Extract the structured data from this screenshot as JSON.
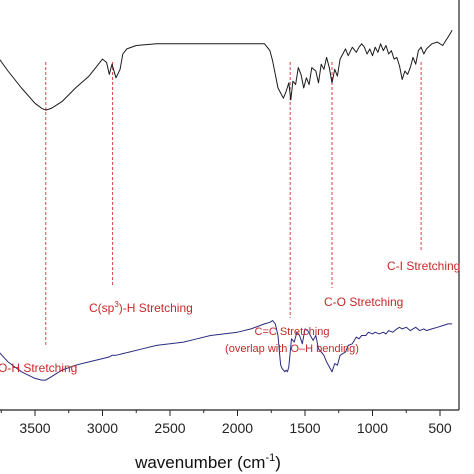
{
  "chart_data": {
    "type": "line",
    "title": "",
    "xlabel": "wavenumber (cm⁻¹)",
    "ylabel": "",
    "x_reversed": true,
    "xlim": [
      4000,
      400
    ],
    "ylim": [
      0,
      100
    ],
    "grid": false,
    "x_ticks": [
      3500,
      3000,
      2500,
      2000,
      1500,
      1000,
      500
    ],
    "colors": {
      "top": "#1a1a1a",
      "bottom": "#2b2b80",
      "markers": "#d32f2f",
      "text": "#c62828"
    },
    "series": [
      {
        "key": "top",
        "color": "#1a1a1a",
        "x": [
          4000,
          3900,
          3800,
          3700,
          3600,
          3500,
          3450,
          3420,
          3380,
          3300,
          3200,
          3100,
          3050,
          3000,
          2970,
          2950,
          2930,
          2900,
          2870,
          2850,
          2820,
          2750,
          2600,
          2400,
          2200,
          2000,
          1900,
          1800,
          1760,
          1740,
          1720,
          1700,
          1680,
          1660,
          1640,
          1620,
          1605,
          1590,
          1570,
          1550,
          1530,
          1510,
          1490,
          1470,
          1450,
          1420,
          1400,
          1380,
          1360,
          1340,
          1320,
          1300,
          1280,
          1260,
          1240,
          1220,
          1200,
          1180,
          1150,
          1120,
          1100,
          1080,
          1060,
          1040,
          1020,
          1000,
          980,
          960,
          940,
          920,
          900,
          880,
          860,
          840,
          820,
          800,
          780,
          760,
          740,
          720,
          700,
          680,
          660,
          640,
          620,
          600,
          560,
          520,
          480,
          440,
          410
        ],
        "y": [
          97,
          90,
          81,
          70,
          60,
          51,
          48,
          47,
          48,
          52,
          60,
          67,
          72,
          77,
          75,
          68,
          74,
          66,
          71,
          80,
          83,
          85,
          86,
          86,
          86,
          86,
          86,
          86,
          82,
          76,
          68,
          60,
          57,
          54,
          58,
          63,
          53,
          64,
          62,
          72,
          68,
          60,
          66,
          62,
          72,
          70,
          63,
          74,
          71,
          78,
          72,
          63,
          71,
          67,
          77,
          80,
          83,
          79,
          84,
          81,
          84,
          86,
          84,
          80,
          83,
          79,
          84,
          81,
          86,
          82,
          85,
          80,
          82,
          77,
          78,
          73,
          65,
          70,
          68,
          72,
          78,
          74,
          82,
          84,
          80,
          83,
          86,
          87,
          85,
          90,
          94
        ]
      },
      {
        "key": "bottom",
        "color": "#2b2b80",
        "x": [
          4000,
          3900,
          3800,
          3700,
          3600,
          3500,
          3450,
          3420,
          3380,
          3300,
          3200,
          3100,
          3000,
          2950,
          2930,
          2900,
          2850,
          2800,
          2700,
          2600,
          2500,
          2400,
          2300,
          2200,
          2100,
          2000,
          1900,
          1800,
          1760,
          1740,
          1720,
          1700,
          1690,
          1680,
          1670,
          1660,
          1650,
          1640,
          1630,
          1620,
          1600,
          1580,
          1560,
          1540,
          1520,
          1500,
          1480,
          1460,
          1440,
          1420,
          1400,
          1380,
          1360,
          1340,
          1320,
          1300,
          1280,
          1260,
          1240,
          1220,
          1200,
          1180,
          1150,
          1120,
          1100,
          1080,
          1050,
          1030,
          1000,
          980,
          950,
          920,
          900,
          880,
          850,
          820,
          800,
          780,
          750,
          720,
          700,
          680,
          650,
          620,
          600,
          560,
          520,
          480,
          440,
          410
        ],
        "y": [
          46,
          33,
          23,
          14,
          8,
          4,
          3,
          3,
          5,
          9,
          12,
          14,
          16,
          17,
          18,
          18,
          19,
          20,
          22,
          24,
          25,
          26,
          28,
          30,
          31,
          32,
          34,
          37,
          38,
          39,
          37,
          30,
          20,
          12,
          10,
          9,
          8,
          9,
          8,
          11,
          28,
          26,
          32,
          30,
          25,
          34,
          33,
          30,
          27,
          30,
          22,
          20,
          18,
          14,
          11,
          8,
          13,
          12,
          18,
          19,
          20,
          24,
          25,
          29,
          28,
          30,
          30,
          32,
          31,
          32,
          31,
          32,
          31,
          33,
          32,
          34,
          35,
          34,
          35,
          33,
          34,
          35,
          33,
          34,
          33,
          34,
          35,
          36,
          37,
          37
        ]
      }
    ],
    "markers": [
      3420,
      2925,
      1610,
      1300,
      640
    ],
    "annotations": [
      {
        "key": "oh",
        "lines": [
          "O-H Stretching"
        ],
        "x": 3750,
        "y": 5
      },
      {
        "key": "ch",
        "lines": [
          "C(sp³)-H Stretching"
        ],
        "x": 2700,
        "y": 17
      },
      {
        "key": "cc",
        "lines": [
          "C=C Stretching",
          "(overlap with O–H bending)"
        ],
        "x": 1600,
        "y": 3
      },
      {
        "key": "co",
        "lines": [
          "C-O Stretching"
        ],
        "x": 1150,
        "y": 16
      },
      {
        "key": "ci",
        "lines": [
          "C-I Stretching"
        ],
        "x": 560,
        "y": 25
      }
    ]
  },
  "labels": {
    "xlabel_main": "wavenumber (cm",
    "xlabel_sup": "-1",
    "xlabel_end": ")",
    "ch_prefix": "C(sp",
    "ch_sup": "3",
    "ch_suffix": ")-H Stretching",
    "oh": "O-H Stretching",
    "cc_line1": "C=C Stretching",
    "cc_line2": "(overlap with O–H bending)",
    "co": "C-O Stretching",
    "ci": "C-I Stretching"
  }
}
